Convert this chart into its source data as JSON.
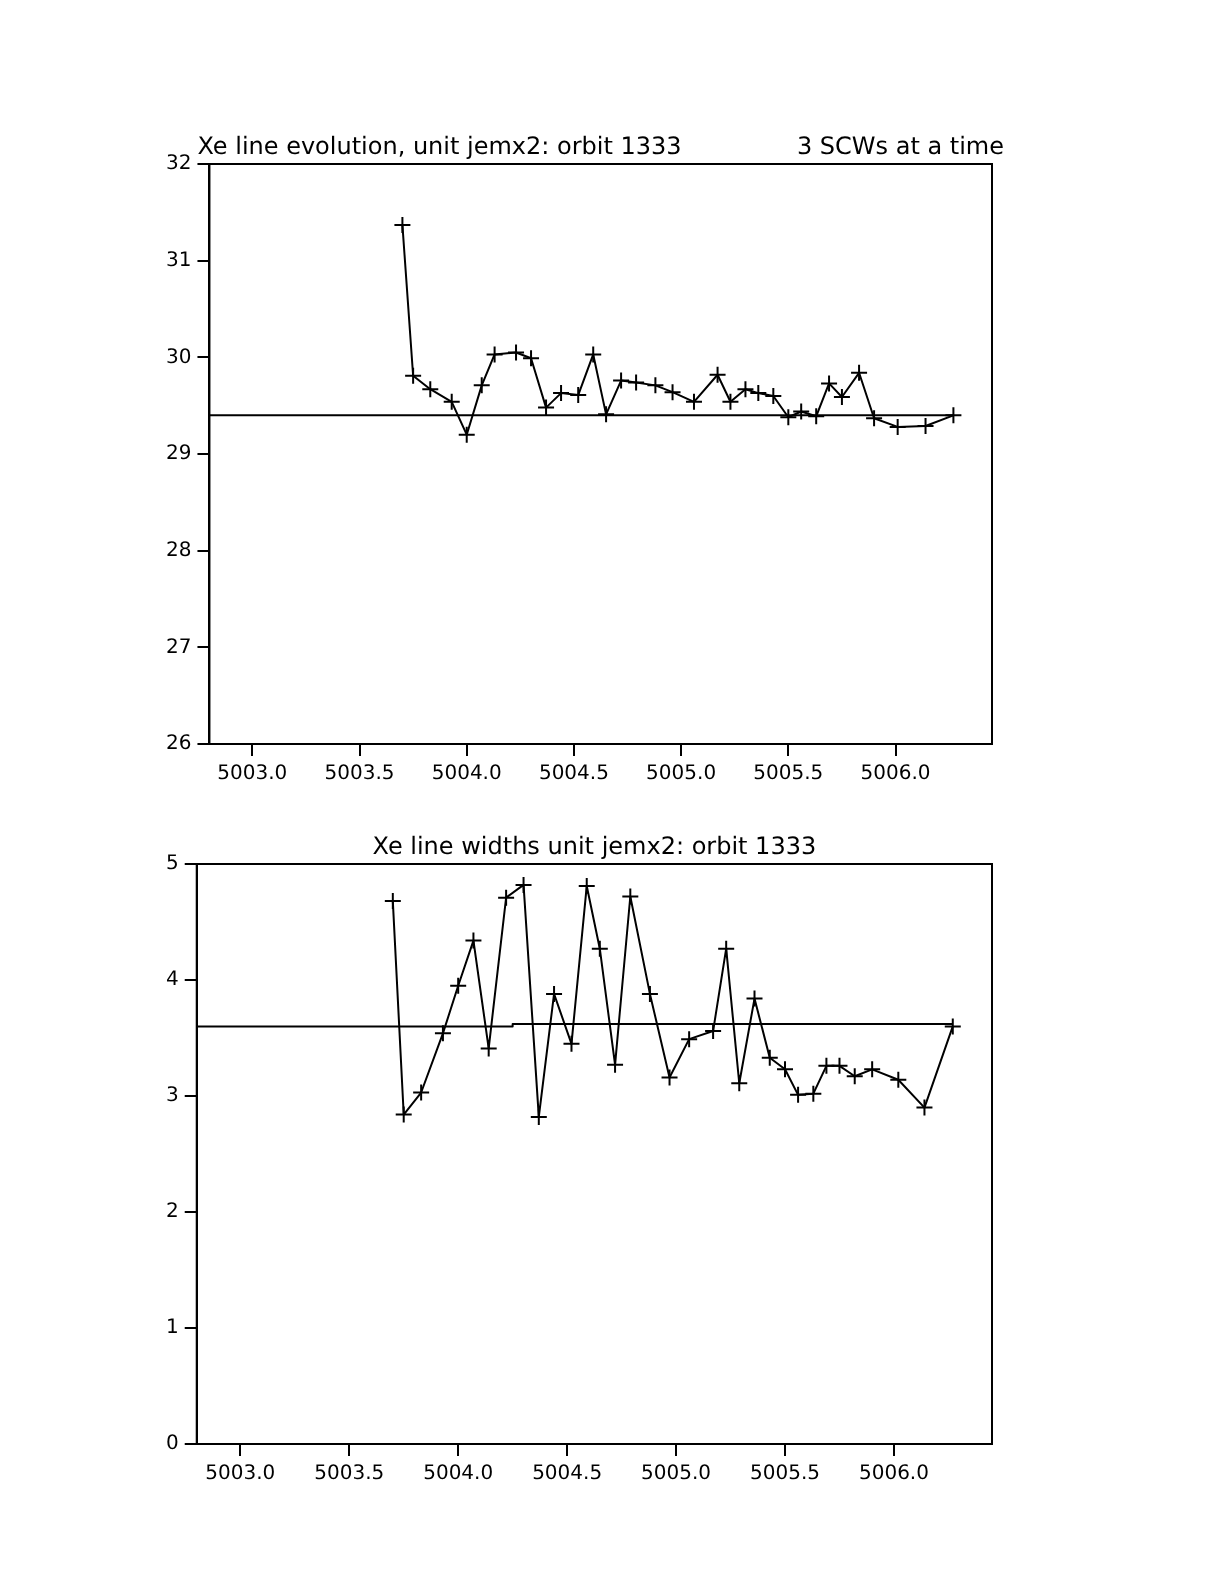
{
  "chart_data": [
    {
      "type": "line",
      "title": "Xe line evolution, unit jemx2: orbit 1333",
      "subtitle": "3 SCWs at a time",
      "marker": "cross",
      "legend": false,
      "grid": false,
      "xlim": [
        5002.8,
        5006.45
      ],
      "xticks": [
        {
          "value": 5003,
          "label": "5003.0"
        },
        {
          "value": 5003.5,
          "label": "5003.5"
        },
        {
          "value": 5004,
          "label": "5004.0"
        },
        {
          "value": 5004.5,
          "label": "5004.5"
        },
        {
          "value": 5005,
          "label": "5005.0"
        },
        {
          "value": 5005.5,
          "label": "5005.5"
        },
        {
          "value": 5006,
          "label": "5006.0"
        }
      ],
      "ylim": [
        26,
        32
      ],
      "yticks": [
        26,
        27,
        28,
        29,
        30,
        31,
        32
      ],
      "series": [
        {
          "color": "#000000",
          "x": [
            5003.7,
            5003.75,
            5003.83,
            5003.93,
            5004.0,
            5004.07,
            5004.13,
            5004.23,
            5004.3,
            5004.37,
            5004.44,
            5004.52,
            5004.59,
            5004.65,
            5004.72,
            5004.79,
            5004.88,
            5004.96,
            5005.06,
            5005.17,
            5005.23,
            5005.3,
            5005.36,
            5005.43,
            5005.5,
            5005.56,
            5005.63,
            5005.69,
            5005.75,
            5005.83,
            5005.9,
            5006.01,
            5006.14,
            5006.27
          ],
          "values": [
            31.37,
            29.81,
            29.67,
            29.54,
            29.2,
            29.71,
            30.03,
            30.05,
            29.99,
            29.48,
            29.63,
            29.61,
            30.03,
            29.41,
            29.76,
            29.74,
            29.71,
            29.64,
            29.54,
            29.82,
            29.54,
            29.67,
            29.63,
            29.6,
            29.38,
            29.44,
            29.39,
            29.73,
            29.59,
            29.84,
            29.37,
            29.28,
            29.29,
            29.4
          ]
        },
        {
          "type": "line",
          "marker": "none",
          "color": "#000000",
          "x": [
            5002.8,
            5006.27
          ],
          "values": [
            29.4,
            29.4
          ]
        }
      ]
    },
    {
      "type": "line",
      "title": "Xe line widths unit jemx2: orbit 1333",
      "marker": "cross",
      "legend": false,
      "grid": false,
      "xlim": [
        5002.8,
        5006.45
      ],
      "xticks": [
        {
          "value": 5003,
          "label": "5003.0"
        },
        {
          "value": 5003.5,
          "label": "5003.5"
        },
        {
          "value": 5004,
          "label": "5004.0"
        },
        {
          "value": 5004.5,
          "label": "5004.5"
        },
        {
          "value": 5005,
          "label": "5005.0"
        },
        {
          "value": 5005.5,
          "label": "5005.5"
        },
        {
          "value": 5006,
          "label": "5006.0"
        }
      ],
      "ylim": [
        0,
        5
      ],
      "yticks": [
        0,
        1,
        2,
        3,
        4,
        5
      ],
      "series": [
        {
          "color": "#000000",
          "x": [
            5003.7,
            5003.75,
            5003.83,
            5003.93,
            5004.0,
            5004.07,
            5004.14,
            5004.22,
            5004.3,
            5004.37,
            5004.44,
            5004.52,
            5004.59,
            5004.65,
            5004.72,
            5004.79,
            5004.88,
            5004.97,
            5005.06,
            5005.17,
            5005.23,
            5005.29,
            5005.36,
            5005.43,
            5005.5,
            5005.56,
            5005.63,
            5005.69,
            5005.75,
            5005.82,
            5005.9,
            5006.02,
            5006.14,
            5006.27
          ],
          "values": [
            4.68,
            2.84,
            3.03,
            3.54,
            3.95,
            4.34,
            3.41,
            4.71,
            4.82,
            2.82,
            3.88,
            3.45,
            4.81,
            4.27,
            3.27,
            4.72,
            3.88,
            3.16,
            3.49,
            3.56,
            4.27,
            3.11,
            3.84,
            3.33,
            3.23,
            3.01,
            3.02,
            3.26,
            3.26,
            3.17,
            3.23,
            3.14,
            2.9,
            3.6
          ]
        },
        {
          "type": "line",
          "marker": "none",
          "color": "#000000",
          "x": [
            5002.8,
            5004.25,
            5004.25,
            5006.27
          ],
          "values": [
            3.6,
            3.6,
            3.62,
            3.62
          ]
        }
      ]
    }
  ]
}
